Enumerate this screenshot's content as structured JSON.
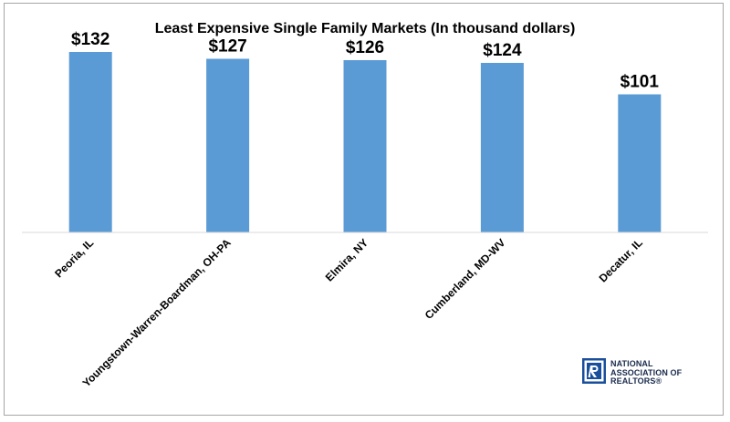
{
  "chart_data": {
    "type": "bar",
    "title": "Least Expensive Single Family Markets (In thousand dollars)",
    "categories": [
      "Peoria, IL",
      "Youngstown-Warren-Boardman, OH-PA",
      "Elmira, NY",
      "Cumberland, MD-WV",
      "Decatur, IL"
    ],
    "values": [
      132,
      127,
      126,
      124,
      101
    ],
    "value_labels": [
      "$132",
      "$127",
      "$126",
      "$124",
      "$101"
    ],
    "xlabel": "",
    "ylabel": "",
    "ylim": [
      0,
      150
    ],
    "grid": false,
    "legend": "none",
    "bar_color": "#5b9bd5"
  },
  "logo": {
    "line1": "NATIONAL",
    "line2": "ASSOCIATION OF",
    "line3": "REALTORS®",
    "color": "#1a4f9c"
  }
}
